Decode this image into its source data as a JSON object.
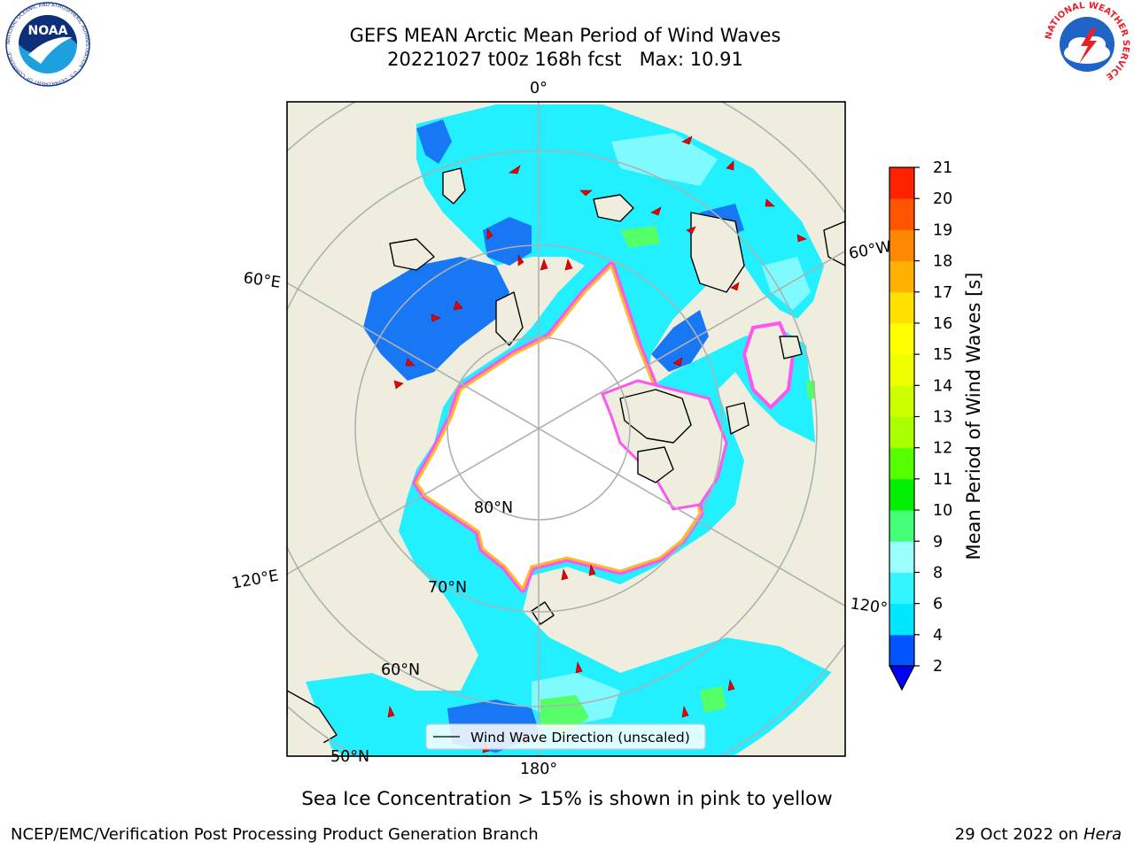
{
  "header": {
    "title_line1": "GEFS MEAN Arctic Mean Period of Wind Waves",
    "title_line2": "20221027 t00z 168h fcst   Max: 10.91"
  },
  "map": {
    "graticule_labels": {
      "lon_0": "0°",
      "lon_60e": "60°E",
      "lon_120e": "120°E",
      "lon_180": "180°",
      "lon_60w": "60°W",
      "lon_120w": "120°",
      "lat_80": "80°N",
      "lat_70": "70°N",
      "lat_60": "60°N",
      "lat_50": "50°N"
    },
    "legend_label": "Wind Wave Direction (unscaled)",
    "colors": {
      "land": "#efedde",
      "ice": "#ffffff",
      "ice_edge_pink": "#ff55ee",
      "ice_edge_orange": "#ffb830"
    }
  },
  "colorbar": {
    "label": "Mean Period of Wind Waves [s]",
    "ticks": [
      "2",
      "4",
      "6",
      "8",
      "9",
      "10",
      "11",
      "12",
      "13",
      "14",
      "15",
      "16",
      "17",
      "18",
      "19",
      "20",
      "21"
    ],
    "colors": [
      "#0055ff",
      "#00e6ff",
      "#33f5ff",
      "#99ffff",
      "#44ff77",
      "#00ee00",
      "#55ff00",
      "#aaff00",
      "#ccff00",
      "#eeff00",
      "#ffff00",
      "#ffe000",
      "#ffb000",
      "#ff8800",
      "#ff5500",
      "#ff2200",
      "#ff0000"
    ],
    "extend_color": "#0000ff"
  },
  "footer": {
    "note": "Sea Ice Concentration > 15% is shown in pink to yellow",
    "left": "NCEP/EMC/Verification Post Processing Product Generation Branch",
    "right_prefix": "29 Oct 2022 on ",
    "right_host": "Hera"
  },
  "logos": {
    "noaa_text": "NOAA",
    "noaa_ring": "NATIONAL OCEANIC AND ATMOSPHERIC ADMINISTRATION · U.S. DEPARTMENT OF COMMERCE",
    "nws_ring": "NATIONAL WEATHER SERVICE"
  }
}
